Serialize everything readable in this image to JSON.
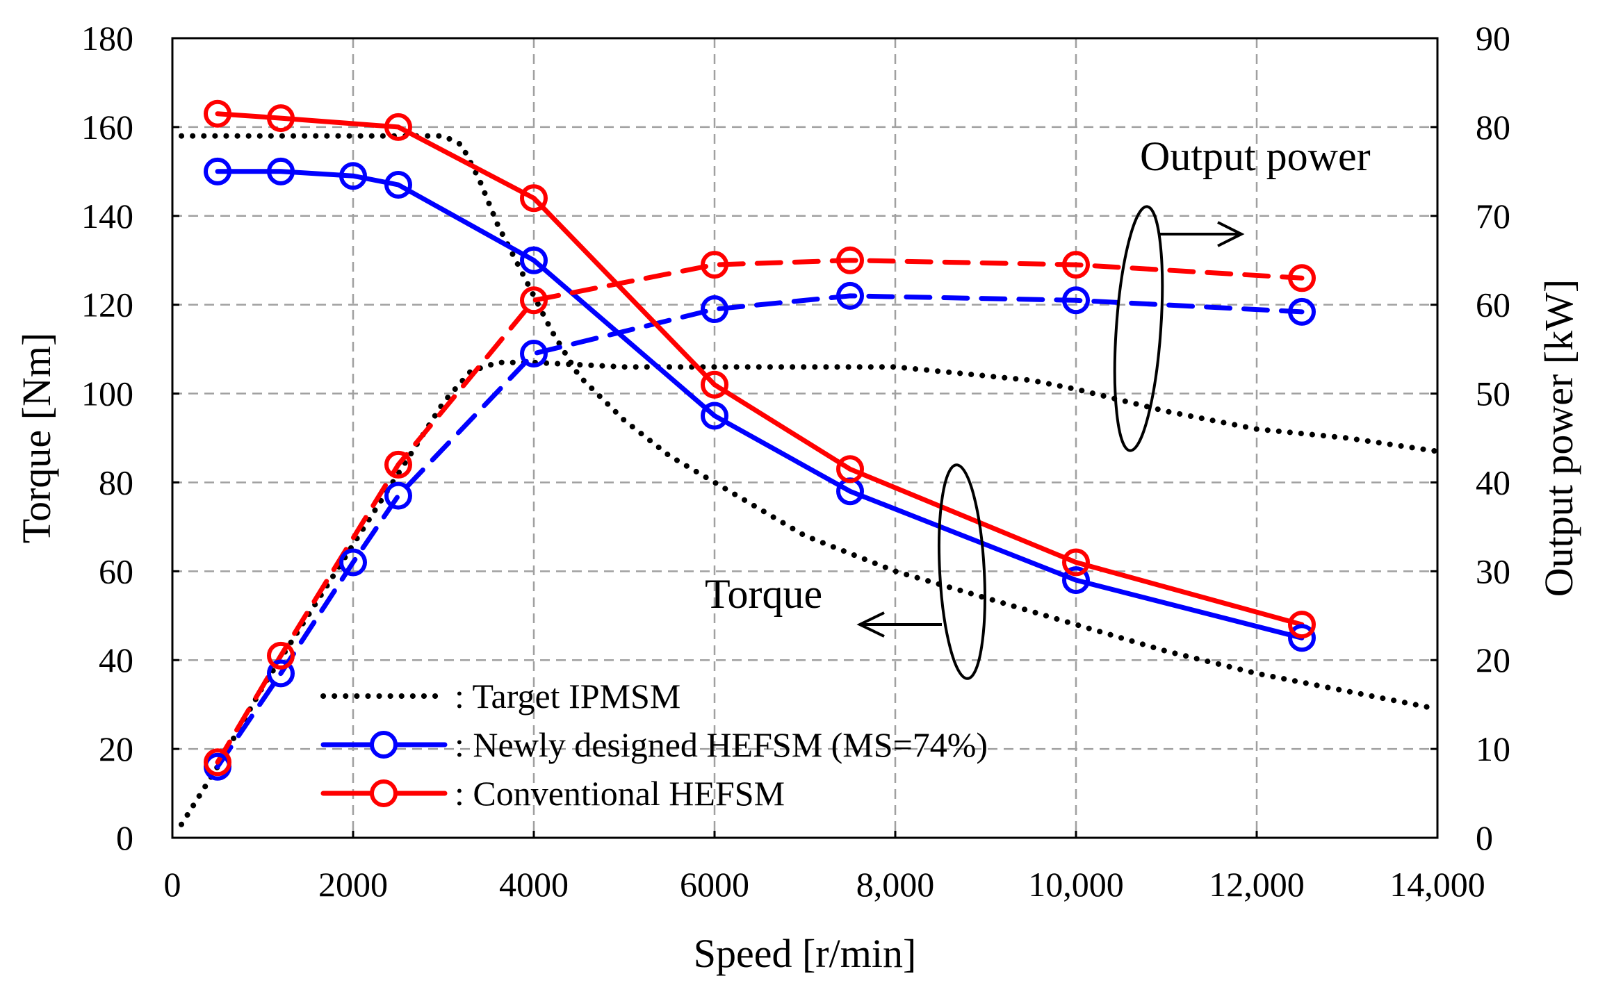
{
  "chart_data": {
    "type": "line",
    "x_unit_note": "speed in r/min",
    "xlabel": "Speed [r/min]",
    "ylabel_left": "Torque [Nm]",
    "ylabel_right": "Output power [kW]",
    "xlim": [
      0,
      14000
    ],
    "ylim_left": [
      0,
      180
    ],
    "ylim_right": [
      0,
      90
    ],
    "x_tick_values": [
      0,
      2000,
      4000,
      6000,
      8000,
      10000,
      12000,
      14000
    ],
    "x_tick_labels": [
      "0",
      "2000",
      "4000",
      "6000",
      "8,000",
      "10,000",
      "12,000",
      "14,000"
    ],
    "y_left_ticks": [
      "0",
      "20",
      "40",
      "60",
      "80",
      "100",
      "120",
      "140",
      "160",
      "180"
    ],
    "y_right_ticks": [
      "0",
      "10",
      "20",
      "30",
      "40",
      "50",
      "60",
      "70",
      "80",
      "90"
    ],
    "grid": true,
    "annotations": {
      "output_power": "Output power",
      "torque": "Torque"
    },
    "series": [
      {
        "name": "Target IPMSM torque",
        "group": "Target IPMSM",
        "quantity": "torque",
        "axis": "left",
        "color": "#000000",
        "style": "dotted",
        "markers": false,
        "x": [
          100,
          500,
          1000,
          1500,
          2000,
          2500,
          3000,
          3200,
          3400,
          3600,
          3800,
          4000,
          4200,
          4500,
          5000,
          5500,
          6000,
          6500,
          7000,
          8000,
          9000,
          10000,
          11000,
          12000,
          13000,
          14000
        ],
        "y": [
          158,
          158,
          158,
          158,
          158,
          158,
          158,
          156,
          148,
          138,
          130,
          122,
          114,
          104,
          94,
          86,
          80,
          74,
          68,
          60,
          54,
          48,
          42,
          37,
          33,
          29
        ]
      },
      {
        "name": "Target IPMSM output power",
        "group": "Target IPMSM",
        "quantity": "power",
        "axis": "right",
        "color": "#000000",
        "style": "dotted",
        "markers": false,
        "x": [
          100,
          500,
          1000,
          1500,
          2000,
          2500,
          3000,
          3300,
          3600,
          4000,
          5000,
          6000,
          7000,
          7500,
          8000,
          8500,
          9000,
          9500,
          10000,
          11000,
          12000,
          13000,
          14000
        ],
        "y": [
          1.5,
          8,
          17,
          25,
          33,
          41,
          49,
          52.5,
          53.5,
          53.5,
          53,
          53,
          53,
          53,
          53,
          52.5,
          52,
          51.5,
          50.5,
          48,
          46,
          45,
          43.5
        ]
      },
      {
        "name": "Newly designed HEFSM (MS=74%) torque",
        "group": "Newly designed HEFSM (MS=74%)",
        "quantity": "torque",
        "axis": "left",
        "color": "#0000ff",
        "style": "solid",
        "markers": true,
        "x": [
          500,
          1200,
          2000,
          2500,
          4000,
          6000,
          7500,
          10000,
          12500
        ],
        "y": [
          150,
          150,
          149,
          147,
          130,
          95,
          78,
          58,
          45
        ]
      },
      {
        "name": "Newly designed HEFSM (MS=74%) output power",
        "group": "Newly designed HEFSM (MS=74%)",
        "quantity": "power",
        "axis": "right",
        "color": "#0000ff",
        "style": "dashed",
        "markers": true,
        "x": [
          500,
          1200,
          2000,
          2500,
          4000,
          6000,
          7500,
          10000,
          12500
        ],
        "y": [
          8,
          18.5,
          31,
          38.5,
          54.5,
          59.5,
          61,
          60.5,
          59.2
        ]
      },
      {
        "name": "Conventional HEFSM torque",
        "group": "Conventional HEFSM",
        "quantity": "torque",
        "axis": "left",
        "color": "#ff0000",
        "style": "solid",
        "markers": true,
        "x": [
          500,
          1200,
          2500,
          4000,
          6000,
          7500,
          10000,
          12500
        ],
        "y": [
          163,
          162,
          160,
          144,
          102,
          83,
          62,
          48
        ]
      },
      {
        "name": "Conventional HEFSM output power",
        "group": "Conventional HEFSM",
        "quantity": "power",
        "axis": "right",
        "color": "#ff0000",
        "style": "dashed",
        "markers": true,
        "x": [
          500,
          1200,
          2500,
          4000,
          6000,
          7500,
          10000,
          12500
        ],
        "y": [
          8.5,
          20.5,
          42,
          60.5,
          64.5,
          65,
          64.5,
          63
        ]
      }
    ],
    "legend": [
      {
        "label": ": Target IPMSM",
        "color": "#000000",
        "style": "dotted",
        "marker": false
      },
      {
        "label": ": Newly designed HEFSM (MS=74%)",
        "color": "#0000ff",
        "style": "solid",
        "marker": true
      },
      {
        "label": ": Conventional HEFSM",
        "color": "#ff0000",
        "style": "solid",
        "marker": true
      }
    ],
    "legend_position": "lower-left"
  }
}
